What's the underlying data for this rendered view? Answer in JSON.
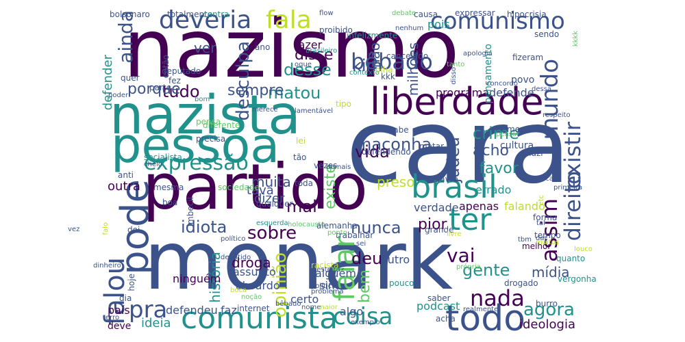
{
  "words": [
    {
      "text": "monark",
      "color": "#3b528b"
    },
    {
      "text": "cara",
      "color": "#3b528b"
    },
    {
      "text": "nazismo",
      "color": "#440154"
    },
    {
      "text": "partido",
      "color": "#440154"
    },
    {
      "text": "nazista",
      "color": "#21918c"
    },
    {
      "text": "pessoa",
      "color": "#21918c"
    },
    {
      "text": "liberdade",
      "color": "#440154"
    },
    {
      "text": "comunista",
      "color": "#21918c"
    },
    {
      "text": "todo",
      "color": "#3b528b"
    },
    {
      "text": "brasil",
      "color": "#21918c"
    },
    {
      "text": "pode",
      "color": "#3b528b"
    },
    {
      "text": "ter",
      "color": "#21918c"
    },
    {
      "text": "deveria",
      "color": "#3b528b"
    },
    {
      "text": "comunismo",
      "color": "#3b528b"
    },
    {
      "text": "fala",
      "color": "#bddf26"
    },
    {
      "text": "bêbado",
      "color": "#3b528b"
    },
    {
      "text": "expressão",
      "color": "#21918c"
    },
    {
      "text": "falar",
      "color": "#5ec962"
    },
    {
      "text": "mundo",
      "color": "#3b528b"
    },
    {
      "text": "existir",
      "color": "#3b528b"
    },
    {
      "text": "direito",
      "color": "#3b528b"
    },
    {
      "text": "coisa",
      "color": "#21918c"
    },
    {
      "text": "nada",
      "color": "#440154"
    },
    {
      "text": "pra",
      "color": "#3b528b"
    },
    {
      "text": "agora",
      "color": "#21918c"
    },
    {
      "text": "falou",
      "color": "#3b528b"
    },
    {
      "text": "maconha",
      "color": "#3b528b"
    },
    {
      "text": "vida",
      "color": "#440154"
    },
    {
      "text": "sobre",
      "color": "#440154"
    },
    {
      "text": "nunca",
      "color": "#3b528b"
    },
    {
      "text": "idiota",
      "color": "#3b528b"
    },
    {
      "text": "tudo",
      "color": "#440154"
    },
    {
      "text": "crime",
      "color": "#21918c"
    },
    {
      "text": "gente",
      "color": "#21918c"
    },
    {
      "text": "assim",
      "color": "#440154"
    },
    {
      "text": "vai",
      "color": "#440154"
    },
    {
      "text": "judeu",
      "color": "#3b528b"
    },
    {
      "text": "ainda",
      "color": "#3b528b"
    },
    {
      "text": "desculpa",
      "color": "#3b528b"
    },
    {
      "text": "kim",
      "color": "#3b528b"
    },
    {
      "text": "matou",
      "color": "#21918c"
    },
    {
      "text": "desse",
      "color": "#21918c"
    },
    {
      "text": "disse",
      "color": "#440154"
    },
    {
      "text": "existe",
      "color": "#5ec962"
    },
    {
      "text": "muita",
      "color": "#3b528b"
    },
    {
      "text": "acho",
      "color": "#3b528b"
    },
    {
      "text": "favor",
      "color": "#21918c"
    },
    {
      "text": "pior",
      "color": "#440154"
    },
    {
      "text": "mal",
      "color": "#440154"
    },
    {
      "text": "deu",
      "color": "#440154"
    },
    {
      "text": "bem",
      "color": "#5ec962"
    },
    {
      "text": "porque",
      "color": "#3b528b"
    },
    {
      "text": "sempre",
      "color": "#3b528b"
    },
    {
      "text": "opinião",
      "color": "#bddf26"
    },
    {
      "text": "preso",
      "color": "#bddf26"
    },
    {
      "text": "não",
      "color": "#3b528b"
    },
    {
      "text": "milhões",
      "color": "#3b528b"
    },
    {
      "text": "ver",
      "color": "#3b528b"
    },
    {
      "text": "defender",
      "color": "#21918c"
    },
    {
      "text": "outra",
      "color": "#440154"
    },
    {
      "text": "ideia",
      "color": "#21918c"
    },
    {
      "text": "história",
      "color": "#21918c"
    },
    {
      "text": "droga",
      "color": "#440154"
    },
    {
      "text": "mídia",
      "color": "#3b528b"
    },
    {
      "text": "ideologia",
      "color": "#440154"
    },
    {
      "text": "podcast",
      "color": "#21918c"
    },
    {
      "text": "tava",
      "color": "#3b528b"
    },
    {
      "text": "dizer",
      "color": "#3b528b"
    },
    {
      "text": "verdade",
      "color": "#3b528b"
    },
    {
      "text": "apenas",
      "color": "#440154"
    },
    {
      "text": "falando",
      "color": "#bddf26"
    },
    {
      "text": "programa",
      "color": "#440154"
    },
    {
      "text": "defende",
      "color": "#3b528b"
    },
    {
      "text": "pensamento",
      "color": "#21918c"
    },
    {
      "text": "cultura",
      "color": "#3b528b"
    },
    {
      "text": "povo",
      "color": "#3b528b"
    },
    {
      "text": "fazer",
      "color": "#440154"
    },
    {
      "text": "pois",
      "color": "#21918c"
    },
    {
      "text": "errado",
      "color": "#21918c"
    },
    {
      "text": "certo",
      "color": "#3b528b"
    },
    {
      "text": "algo",
      "color": "#3b528b"
    },
    {
      "text": "sim",
      "color": "#3b528b"
    },
    {
      "text": "alguém",
      "color": "#3b528b"
    },
    {
      "text": "outro",
      "color": "#3b528b"
    },
    {
      "text": "assunto",
      "color": "#3b528b"
    },
    {
      "text": "absurdo",
      "color": "#3b528b"
    },
    {
      "text": "ninguém",
      "color": "#440154"
    },
    {
      "text": "país",
      "color": "#440154"
    },
    {
      "text": "deve",
      "color": "#440154"
    },
    {
      "text": "defendeu",
      "color": "#3b528b"
    },
    {
      "text": "faz",
      "color": "#3b528b"
    },
    {
      "text": "internet",
      "color": "#3b528b"
    },
    {
      "text": "acha",
      "color": "#3b528b"
    },
    {
      "text": "saber",
      "color": "#3b528b"
    },
    {
      "text": "realmente",
      "color": "#3b528b"
    },
    {
      "text": "pouco",
      "color": "#21918c"
    },
    {
      "text": "drogado",
      "color": "#3b528b"
    },
    {
      "text": "vergonha",
      "color": "#21918c"
    },
    {
      "text": "quanto",
      "color": "#21918c"
    },
    {
      "text": "burro",
      "color": "#3b528b"
    },
    {
      "text": "tempo",
      "color": "#3b528b"
    },
    {
      "text": "melhor",
      "color": "#440154"
    },
    {
      "text": "grande",
      "color": "#3b528b"
    },
    {
      "text": "trabalhar",
      "color": "#3b528b"
    },
    {
      "text": "forma",
      "color": "#3b528b"
    },
    {
      "text": "deputado",
      "color": "#3b528b"
    },
    {
      "text": "então",
      "color": "#3b528b"
    },
    {
      "text": "fez",
      "color": "#3b528b"
    },
    {
      "text": "quer",
      "color": "#3b528b"
    },
    {
      "text": "hoje",
      "color": "#3b528b"
    },
    {
      "text": "dia",
      "color": "#3b528b"
    },
    {
      "text": "doi",
      "color": "#3b528b"
    },
    {
      "text": "mesma",
      "color": "#3b528b"
    },
    {
      "text": "anti",
      "color": "#3b528b"
    },
    {
      "text": "boa",
      "color": "#3b528b"
    },
    {
      "text": "toda",
      "color": "#3b528b"
    },
    {
      "text": "qualquer",
      "color": "#3b528b"
    },
    {
      "text": "sabe",
      "color": "#3b528b"
    },
    {
      "text": "defendendo",
      "color": "#3b528b"
    },
    {
      "text": "nazi",
      "color": "#3b528b"
    },
    {
      "text": "menos",
      "color": "#3b528b"
    },
    {
      "text": "lei",
      "color": "#bddf26"
    },
    {
      "text": "tipo",
      "color": "#bddf26"
    },
    {
      "text": "vezes",
      "color": "#3b528b"
    },
    {
      "text": "tão",
      "color": "#3b528b"
    },
    {
      "text": "palavra",
      "color": "#3b528b"
    },
    {
      "text": "matar",
      "color": "#3b528b"
    },
    {
      "text": "precisa",
      "color": "#3b528b"
    },
    {
      "text": "pensa",
      "color": "#5ec962"
    },
    {
      "text": "diferente",
      "color": "#5ec962"
    },
    {
      "text": "socialista",
      "color": "#21918c"
    },
    {
      "text": "sociedade",
      "color": "#5ec962"
    },
    {
      "text": "imbecil",
      "color": "#3b528b"
    },
    {
      "text": "esquerda",
      "color": "#21918c"
    },
    {
      "text": "holocausto",
      "color": "#5ec962"
    },
    {
      "text": "alemanha",
      "color": "#3b528b"
    },
    {
      "text": "ponto",
      "color": "#5ec962"
    },
    {
      "text": "livre",
      "color": "#bddf26"
    },
    {
      "text": "sei",
      "color": "#3b528b"
    },
    {
      "text": "dar",
      "color": "#3b528b"
    },
    {
      "text": "muitos",
      "color": "#bddf26"
    },
    {
      "text": "tbm",
      "color": "#3b528b"
    },
    {
      "text": "tal",
      "color": "#3b528b"
    },
    {
      "text": "louco",
      "color": "#bddf26"
    },
    {
      "text": "etc",
      "color": "#bddf26"
    },
    {
      "text": "fica",
      "color": "#3b528b"
    },
    {
      "text": "primeira",
      "color": "#3b528b"
    },
    {
      "text": "falo",
      "color": "#bddf26"
    },
    {
      "text": "político",
      "color": "#3b528b"
    },
    {
      "text": "demitido",
      "color": "#3b528b"
    },
    {
      "text": "racista",
      "color": "#bddf26"
    },
    {
      "text": "besteira",
      "color": "#3b528b"
    },
    {
      "text": "política",
      "color": "#3b528b"
    },
    {
      "text": "noção",
      "color": "#5ec962"
    },
    {
      "text": "boca",
      "color": "#bddf26"
    },
    {
      "text": "problema",
      "color": "#3b528b"
    },
    {
      "text": "bêbado",
      "color": "#3b528b",
      "variant": "small"
    },
    {
      "text": "nome",
      "color": "#3b528b"
    },
    {
      "text": "maior",
      "color": "#bddf26"
    },
    {
      "text": "exemplo",
      "color": "#3b528b"
    },
    {
      "text": "erro",
      "color": "#3b528b"
    },
    {
      "text": "própria",
      "color": "#5ec962"
    },
    {
      "text": "bolsonaro",
      "color": "#3b528b"
    },
    {
      "text": "totalmente",
      "color": "#3b528b"
    },
    {
      "text": "contra",
      "color": "#21918c"
    },
    {
      "text": "flow",
      "color": "#3b528b"
    },
    {
      "text": "debate",
      "color": "#5ec962"
    },
    {
      "text": "causa",
      "color": "#3b528b"
    },
    {
      "text": "expressar",
      "color": "#3b528b"
    },
    {
      "text": "hipocrisia",
      "color": "#3b528b"
    },
    {
      "text": "proibido",
      "color": "#3b528b"
    },
    {
      "text": "infelizmente",
      "color": "#21918c"
    },
    {
      "text": "nenhum",
      "color": "#3b528b"
    },
    {
      "text": "sendo",
      "color": "#3b528b"
    },
    {
      "text": "kkkk",
      "color": "#5ec962"
    },
    {
      "text": "ano",
      "color": "#3b528b"
    },
    {
      "text": "brasileiro",
      "color": "#21918c"
    },
    {
      "text": "oque",
      "color": "#3b528b"
    },
    {
      "text": "contexto",
      "color": "#21918c"
    },
    {
      "text": "cancelado",
      "color": "#3b528b"
    },
    {
      "text": "tanto",
      "color": "#5ec962"
    },
    {
      "text": "apologia",
      "color": "#3b528b"
    },
    {
      "text": "olha",
      "color": "#bddf26"
    },
    {
      "text": "kkk",
      "color": "#3b528b"
    },
    {
      "text": "disso",
      "color": "#3b528b"
    },
    {
      "text": "concordo",
      "color": "#3b528b"
    },
    {
      "text": "fizeram",
      "color": "#3b528b"
    },
    {
      "text": "dessa",
      "color": "#3b528b"
    },
    {
      "text": "parte",
      "color": "#3b528b"
    },
    {
      "text": "poder",
      "color": "#3b528b"
    },
    {
      "text": "bom",
      "color": "#21918c"
    },
    {
      "text": "merece",
      "color": "#3b528b"
    },
    {
      "text": "lamentável",
      "color": "#3b528b"
    },
    {
      "text": "respeito",
      "color": "#3b528b"
    },
    {
      "text": "pensar",
      "color": "#5ec962"
    },
    {
      "text": "cheio",
      "color": "#3b528b"
    },
    {
      "text": "demais",
      "color": "#3b528b"
    },
    {
      "text": "vez",
      "color": "#3b528b"
    },
    {
      "text": "dinheiro",
      "color": "#3b528b"
    }
  ]
}
